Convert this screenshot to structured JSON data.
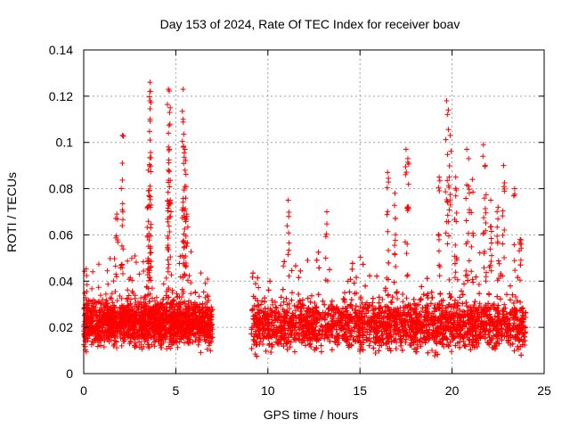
{
  "chart_data": {
    "type": "scatter",
    "title": "Day 153 of 2024, Rate Of TEC Index for receiver boav",
    "xlabel": "GPS time / hours",
    "ylabel": "ROTI / TECUs",
    "xlim": [
      0,
      25
    ],
    "ylim": [
      0,
      0.14
    ],
    "xticks": [
      0,
      5,
      10,
      15,
      20,
      25
    ],
    "xtick_labels": [
      "0",
      "5",
      "10",
      "15",
      "20",
      "25"
    ],
    "yticks": [
      0,
      0.02,
      0.04,
      0.06,
      0.08,
      0.1,
      0.12,
      0.14
    ],
    "ytick_labels": [
      "0",
      "0.02",
      "0.04",
      "0.06",
      "0.08",
      "0.1",
      "0.12",
      "0.14"
    ],
    "grid": true,
    "marker": "+",
    "color": "#ff0000",
    "series": [
      {
        "name": "ROTI",
        "segments": [
          {
            "x_range": [
              0.0,
              7.0
            ],
            "base_min": 0.008,
            "base_max": 0.035
          },
          {
            "x_range": [
              9.1,
              24.0
            ],
            "base_min": 0.006,
            "base_max": 0.035
          }
        ],
        "peaks": [
          {
            "x": 1.8,
            "y": 0.069
          },
          {
            "x": 2.1,
            "y": 0.103
          },
          {
            "x": 2.1,
            "y": 0.091
          },
          {
            "x": 3.6,
            "y": 0.126
          },
          {
            "x": 3.6,
            "y": 0.118
          },
          {
            "x": 3.6,
            "y": 0.11
          },
          {
            "x": 3.6,
            "y": 0.101
          },
          {
            "x": 3.5,
            "y": 0.088
          },
          {
            "x": 3.5,
            "y": 0.072
          },
          {
            "x": 4.6,
            "y": 0.123
          },
          {
            "x": 4.7,
            "y": 0.115
          },
          {
            "x": 4.6,
            "y": 0.104
          },
          {
            "x": 4.6,
            "y": 0.098
          },
          {
            "x": 4.6,
            "y": 0.088
          },
          {
            "x": 4.7,
            "y": 0.075
          },
          {
            "x": 5.4,
            "y": 0.123
          },
          {
            "x": 5.4,
            "y": 0.11
          },
          {
            "x": 5.5,
            "y": 0.097
          },
          {
            "x": 5.5,
            "y": 0.088
          },
          {
            "x": 5.6,
            "y": 0.069
          },
          {
            "x": 11.1,
            "y": 0.075
          },
          {
            "x": 13.2,
            "y": 0.07
          },
          {
            "x": 16.5,
            "y": 0.087
          },
          {
            "x": 16.9,
            "y": 0.078
          },
          {
            "x": 17.5,
            "y": 0.097
          },
          {
            "x": 17.6,
            "y": 0.093
          },
          {
            "x": 19.3,
            "y": 0.085
          },
          {
            "x": 19.7,
            "y": 0.118
          },
          {
            "x": 19.8,
            "y": 0.114
          },
          {
            "x": 19.9,
            "y": 0.103
          },
          {
            "x": 20.2,
            "y": 0.085
          },
          {
            "x": 20.8,
            "y": 0.097
          },
          {
            "x": 20.9,
            "y": 0.093
          },
          {
            "x": 21.1,
            "y": 0.084
          },
          {
            "x": 21.7,
            "y": 0.099
          },
          {
            "x": 21.8,
            "y": 0.09
          },
          {
            "x": 22.1,
            "y": 0.075
          },
          {
            "x": 22.5,
            "y": 0.072
          },
          {
            "x": 22.8,
            "y": 0.09
          },
          {
            "x": 23.4,
            "y": 0.08
          },
          {
            "x": 23.7,
            "y": 0.058
          }
        ]
      }
    ]
  }
}
